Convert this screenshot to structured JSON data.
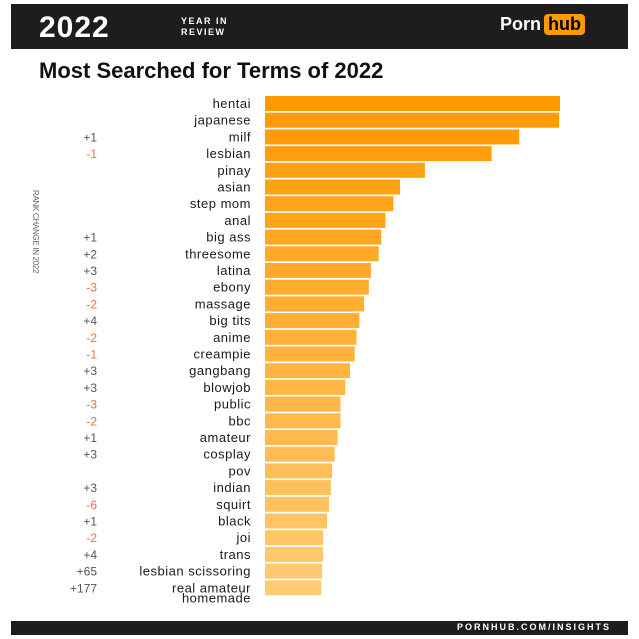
{
  "header": {
    "year": "2022",
    "year_subtitle_line1": "YEAR IN",
    "year_subtitle_line2": "REVIEW",
    "brand_part1": "Porn",
    "brand_part2": "hub"
  },
  "title": "Most Searched for Terms of 2022",
  "rank_axis_label": "RANK CHANGE IN 2022",
  "footer": "PORNHUB.COM/INSIGHTS",
  "colors": {
    "bar_top": "#ff9900",
    "bar_bottom": "#ffcb73",
    "rank_up": "#555555",
    "rank_down": "#e8743b",
    "dark": "#1d1d1d"
  },
  "chart_data": {
    "type": "bar",
    "orientation": "horizontal",
    "value_axis": "relative search volume (unlabeled)",
    "grid": false,
    "legend": "none",
    "xlim": [
      0,
      100
    ],
    "rows": [
      {
        "term": "hentai",
        "value": 100,
        "rank_change": ""
      },
      {
        "term": "japanese",
        "value": 99.7,
        "rank_change": ""
      },
      {
        "term": "milf",
        "value": 86.2,
        "rank_change": "+1"
      },
      {
        "term": "lesbian",
        "value": 76.8,
        "rank_change": "-1"
      },
      {
        "term": "pinay",
        "value": 54.2,
        "rank_change": ""
      },
      {
        "term": "asian",
        "value": 45.8,
        "rank_change": ""
      },
      {
        "term": "step mom",
        "value": 43.5,
        "rank_change": ""
      },
      {
        "term": "anal",
        "value": 40.8,
        "rank_change": ""
      },
      {
        "term": "big ass",
        "value": 39.4,
        "rank_change": "+1"
      },
      {
        "term": "threesome",
        "value": 38.5,
        "rank_change": "+2"
      },
      {
        "term": "latina",
        "value": 35.9,
        "rank_change": "+3"
      },
      {
        "term": "ebony",
        "value": 35.2,
        "rank_change": "-3"
      },
      {
        "term": "massage",
        "value": 33.6,
        "rank_change": "-2"
      },
      {
        "term": "big tits",
        "value": 32.0,
        "rank_change": "+4"
      },
      {
        "term": "anime",
        "value": 31.0,
        "rank_change": "-2"
      },
      {
        "term": "creampie",
        "value": 30.4,
        "rank_change": "-1"
      },
      {
        "term": "gangbang",
        "value": 28.8,
        "rank_change": "+3"
      },
      {
        "term": "blowjob",
        "value": 27.2,
        "rank_change": "+3"
      },
      {
        "term": "public",
        "value": 25.6,
        "rank_change": "-3"
      },
      {
        "term": "bbc",
        "value": 25.6,
        "rank_change": "-2"
      },
      {
        "term": "amateur",
        "value": 24.6,
        "rank_change": "+1"
      },
      {
        "term": "cosplay",
        "value": 23.6,
        "rank_change": "+3"
      },
      {
        "term": "pov",
        "value": 22.7,
        "rank_change": ""
      },
      {
        "term": "indian",
        "value": 22.3,
        "rank_change": "+3"
      },
      {
        "term": "squirt",
        "value": 21.7,
        "rank_change": "-6"
      },
      {
        "term": "black",
        "value": 21.0,
        "rank_change": "+1"
      },
      {
        "term": "joi",
        "value": 19.7,
        "rank_change": "-2"
      },
      {
        "term": "trans",
        "value": 19.7,
        "rank_change": "+4"
      },
      {
        "term": "lesbian scissoring",
        "value": 19.4,
        "rank_change": "+65"
      },
      {
        "term": "real amateur homemade",
        "value": 19.1,
        "rank_change": "+177"
      }
    ]
  }
}
